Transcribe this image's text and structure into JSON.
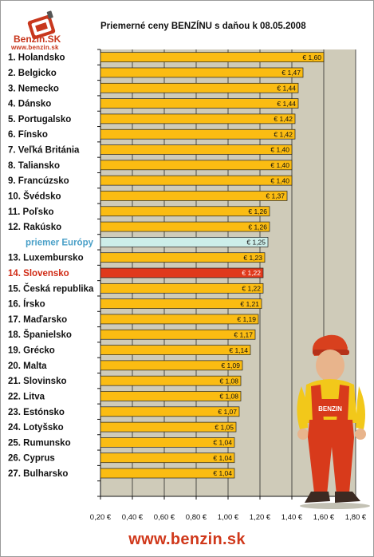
{
  "logo": {
    "brand": "Benzin.SK",
    "site": "www.benzin.sk"
  },
  "footer": {
    "site": "www.benzin.sk"
  },
  "colors": {
    "bar": "#fbbc12",
    "europe_average": "#cdeee9",
    "slovakia": "#e0391c",
    "plot_background": "#cfcbb9",
    "slovakia_label": "#d02a14",
    "europe_label": "#4aa0c8"
  },
  "chart_data": {
    "type": "bar",
    "orientation": "horizontal",
    "title": "Priemerné ceny BENZÍNU s daňou k 08.05.2008",
    "xlabel": "",
    "ylabel": "",
    "xlim": [
      0.2,
      1.8
    ],
    "grid": true,
    "categories": [
      "1. Holandsko",
      "2. Belgicko",
      "3. Nemecko",
      "4. Dánsko",
      "5. Portugalsko",
      "6. Fínsko",
      "7. Veľká Británia",
      "8. Taliansko",
      "9. Francúzsko",
      "10. Švédsko",
      "11. Poľsko",
      "12. Rakúsko",
      "priemer Európy",
      "13. Luxembursko",
      "14. Slovensko",
      "15. Česká republika",
      "16. Írsko",
      "17. Maďarsko",
      "18. Španielsko",
      "19. Grécko",
      "20. Malta",
      "21. Slovinsko",
      "22. Litva",
      "23. Estónsko",
      "24. Lotyšsko",
      "25. Rumunsko",
      "26. Cyprus",
      "27. Bulharsko"
    ],
    "values": [
      1.6,
      1.47,
      1.44,
      1.44,
      1.42,
      1.42,
      1.4,
      1.4,
      1.4,
      1.37,
      1.26,
      1.26,
      1.25,
      1.23,
      1.22,
      1.22,
      1.21,
      1.19,
      1.17,
      1.14,
      1.09,
      1.08,
      1.08,
      1.07,
      1.05,
      1.04,
      1.04,
      1.04
    ],
    "value_labels": [
      "€ 1,60",
      "€ 1,47",
      "€ 1,44",
      "€ 1,44",
      "€ 1,42",
      "€ 1,42",
      "€ 1,40",
      "€ 1,40",
      "€ 1,40",
      "€ 1,37",
      "€ 1,26",
      "€ 1,26",
      "€ 1,25",
      "€ 1,23",
      "€ 1,22",
      "€ 1,22",
      "€ 1,21",
      "€ 1,19",
      "€ 1,17",
      "€ 1,14",
      "€ 1,09",
      "€ 1,08",
      "€ 1,08",
      "€ 1,07",
      "€ 1,05",
      "€ 1,04",
      "€ 1,04",
      "€ 1,04"
    ],
    "highlight": {
      "priemer Európy": "europe_average",
      "14. Slovensko": "slovakia"
    },
    "x_ticks": [
      0.2,
      0.4,
      0.6,
      0.8,
      1.0,
      1.2,
      1.4,
      1.6,
      1.8
    ],
    "x_tick_labels": [
      "0,20 €",
      "0,40 €",
      "0,60 €",
      "0,80 €",
      "1,00 €",
      "1,20 €",
      "1,40 €",
      "1,60 €",
      "1,80 €"
    ]
  }
}
